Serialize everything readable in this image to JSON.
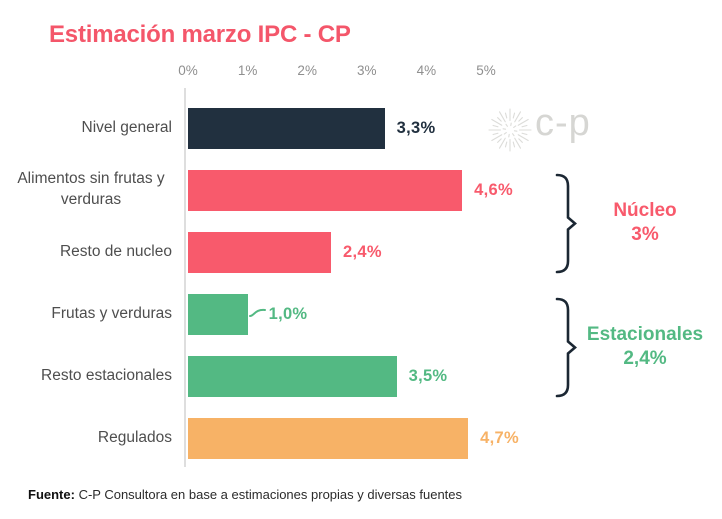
{
  "title": "Estimación marzo IPC - CP",
  "logo": {
    "text": "c-p"
  },
  "footer": {
    "label": "Fuente:",
    "text": " C-P Consultora en base a estimaciones propias y diversas fuentes"
  },
  "colors": {
    "title": "#F4566A",
    "navy": "#21303F",
    "red": "#F85A6C",
    "green": "#53B983",
    "orange": "#F7B266",
    "axis_line": "#DEDEDE",
    "bracket": "#1B2733",
    "logo_gray": "#D6D6D3"
  },
  "chart_data": {
    "type": "bar",
    "orientation": "horizontal",
    "title": "Estimación marzo IPC - CP",
    "xlabel": "",
    "ylabel": "",
    "x_range": [
      0,
      5
    ],
    "x_ticks": [
      "0%",
      "1%",
      "2%",
      "3%",
      "4%",
      "5%"
    ],
    "grid": false,
    "legend": false,
    "rows": [
      {
        "label": "Nivel general",
        "value": 3.3,
        "display": "3,3%",
        "color": "navy"
      },
      {
        "label": "Alimentos sin frutas y verduras",
        "value": 4.6,
        "display": "4,6%",
        "color": "red"
      },
      {
        "label": "Resto de nucleo",
        "value": 2.4,
        "display": "2,4%",
        "color": "red"
      },
      {
        "label": "Frutas y verduras",
        "value": 1.0,
        "display": "1,0%",
        "color": "green",
        "leader": true
      },
      {
        "label": "Resto estacionales",
        "value": 3.5,
        "display": "3,5%",
        "color": "green"
      },
      {
        "label": "Regulados",
        "value": 4.7,
        "display": "4,7%",
        "color": "orange"
      }
    ],
    "groups": [
      {
        "label": "Núcleo",
        "value_label": "3%",
        "color": "red",
        "rows": [
          1,
          2
        ]
      },
      {
        "label": "Estacionales",
        "value_label": "2,4%",
        "color": "green",
        "rows": [
          3,
          4
        ]
      }
    ]
  }
}
